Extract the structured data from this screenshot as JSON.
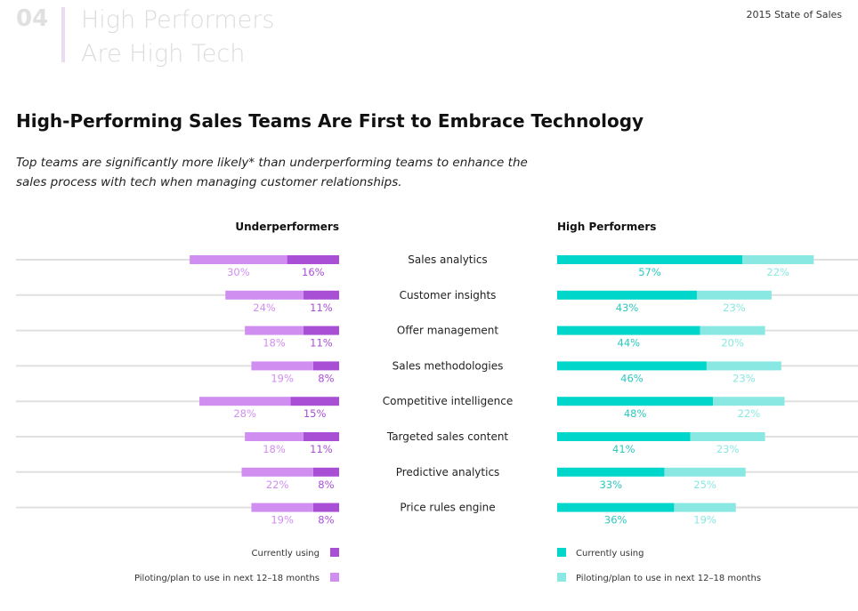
{
  "header": {
    "section_number": "04",
    "section_title_line1": "High Performers",
    "section_title_line2": "Are High Tech",
    "report_name": "2015 State of Sales"
  },
  "title": "High-Performing Sales Teams Are First to Embrace Technology",
  "subtitle": "Top teams are significantly more likely* than underperforming teams to enhance the sales process with tech when managing customer relationships.",
  "colors": {
    "under_current": "#a94fd6",
    "under_plan": "#d08ef0",
    "high_current": "#00d6c9",
    "high_plan": "#8ae8e2",
    "baseline": "#e0e0e0"
  },
  "chart_data": {
    "type": "bar",
    "orientation": "horizontal-stacked",
    "categories": [
      "Sales analytics",
      "Customer insights",
      "Offer management",
      "Sales methodologies",
      "Competitive intelligence",
      "Targeted sales content",
      "Predictive analytics",
      "Price rules engine"
    ],
    "panels": [
      {
        "title": "Underperformers",
        "direction": "left",
        "series": [
          {
            "name": "Currently using",
            "values": [
              16,
              11,
              11,
              8,
              15,
              11,
              8,
              8
            ]
          },
          {
            "name": "Piloting/plan to use in next 12–18 months",
            "values": [
              30,
              24,
              18,
              19,
              28,
              18,
              22,
              19
            ]
          }
        ]
      },
      {
        "title": "High Performers",
        "direction": "right",
        "series": [
          {
            "name": "Currently using",
            "values": [
              57,
              43,
              44,
              46,
              48,
              41,
              33,
              36
            ]
          },
          {
            "name": "Piloting/plan to use in next 12–18 months",
            "values": [
              22,
              23,
              20,
              23,
              22,
              23,
              25,
              19
            ]
          }
        ]
      }
    ],
    "unit": "%"
  }
}
